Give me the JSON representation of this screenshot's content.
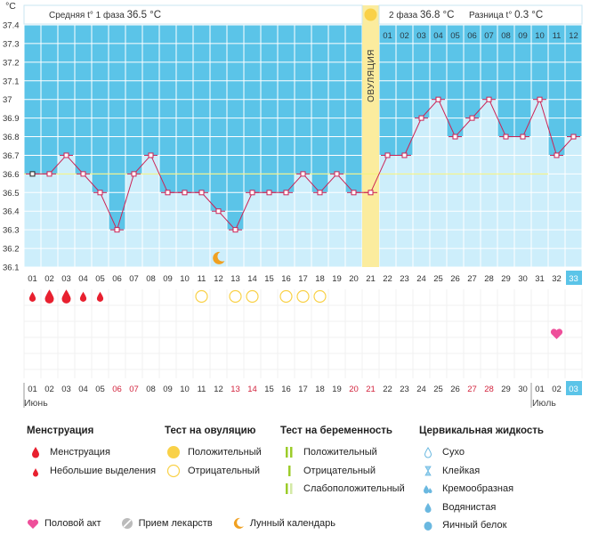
{
  "chart_data": {
    "type": "line",
    "unit_label": "°C",
    "phase1_label": "Средняя t° 1 фаза",
    "phase1_value": "36.5 °C",
    "phase2_label": "2 фаза",
    "phase2_value": "36.8 °C",
    "diff_label": "Разница t°",
    "diff_value": "0.3 °C",
    "ovulation_label": "ОВУЛЯЦИЯ",
    "ovulation_day": 21,
    "cover_line": 36.6,
    "ylim": [
      36.1,
      37.4
    ],
    "y_ticks": [
      "36.1",
      "36.2",
      "36.3",
      "36.4",
      "36.5",
      "36.6",
      "36.7",
      "36.8",
      "36.9",
      "37",
      "37.1",
      "37.2",
      "37.3",
      "37.4"
    ],
    "cycle_days": [
      "01",
      "02",
      "03",
      "04",
      "05",
      "06",
      "07",
      "08",
      "09",
      "10",
      "11",
      "12",
      "13",
      "14",
      "15",
      "16",
      "17",
      "18",
      "19",
      "20",
      "21",
      "22",
      "23",
      "24",
      "25",
      "26",
      "27",
      "28",
      "29",
      "30",
      "31",
      "32",
      "33"
    ],
    "phase2_days": [
      "01",
      "02",
      "03",
      "04",
      "05",
      "06",
      "07",
      "08",
      "09",
      "10",
      "11",
      "12"
    ],
    "temperatures": [
      36.6,
      36.6,
      36.7,
      36.6,
      36.5,
      36.3,
      36.6,
      36.7,
      36.5,
      36.5,
      36.5,
      36.4,
      36.3,
      36.5,
      36.5,
      36.5,
      36.6,
      36.5,
      36.6,
      36.5,
      36.5,
      36.7,
      36.7,
      36.9,
      37.0,
      36.8,
      36.9,
      37.0,
      36.8,
      36.8,
      37.0,
      36.7,
      36.8
    ],
    "calendar_dates": [
      "01",
      "02",
      "03",
      "04",
      "05",
      "06",
      "07",
      "08",
      "09",
      "10",
      "11",
      "12",
      "13",
      "14",
      "15",
      "16",
      "17",
      "18",
      "19",
      "20",
      "21",
      "22",
      "23",
      "24",
      "25",
      "26",
      "27",
      "28",
      "29",
      "30",
      "01",
      "02",
      "03"
    ],
    "weekend_dates_index": [
      5,
      6,
      12,
      13,
      19,
      20,
      26,
      27
    ],
    "month_start": "Июнь",
    "month_next": "Июль",
    "menstruation": [
      {
        "day_index": 0,
        "kind": "light"
      },
      {
        "day_index": 1,
        "kind": "heavy"
      },
      {
        "day_index": 2,
        "kind": "heavy"
      },
      {
        "day_index": 3,
        "kind": "light"
      },
      {
        "day_index": 4,
        "kind": "light"
      }
    ],
    "ovulation_tests_negative": [
      10,
      12,
      13,
      15,
      16,
      17
    ],
    "moon_day_index": 11,
    "intercourse_day_index": 31,
    "current_day_index": 32
  },
  "legend": {
    "menstruation": {
      "title": "Менструация",
      "items": [
        "Менструация",
        "Небольшие выделения"
      ]
    },
    "ovulation_test": {
      "title": "Тест на овуляцию",
      "items": [
        "Положительный",
        "Отрицательный"
      ]
    },
    "pregnancy_test": {
      "title": "Тест на беременность",
      "items": [
        "Положительный",
        "Отрицательный",
        "Слабоположительный"
      ]
    },
    "cervical": {
      "title": "Цервикальная жидкость",
      "items": [
        "Сухо",
        "Клейкая",
        "Кремообразная",
        "Водянистая",
        "Яичный белок"
      ]
    },
    "bottom": [
      "Половой акт",
      "Прием лекарств",
      "Лунный календарь"
    ]
  },
  "colors": {
    "above": "#5bc4e8",
    "below": "#cdeefb",
    "grid": "#ffffff",
    "line": "#cc2255",
    "ovulation": "#fbec9e",
    "sun": "#f9d148",
    "drop": "#e8202f",
    "heart": "#ee4f9a",
    "moon": "#f0a020",
    "current": "#5bc4e8"
  }
}
